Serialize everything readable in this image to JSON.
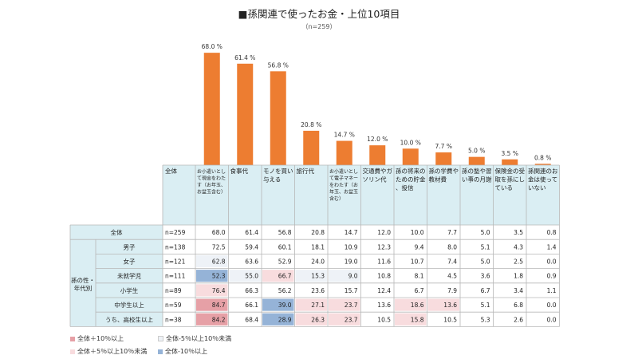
{
  "title": "■孫関連で使ったお金・上位10項目",
  "subtitle": "（n=259）",
  "colors": {
    "bar": "#ED7D31",
    "header_bg": "#DAEEF3",
    "grid": "#B7B7B7",
    "high10": "#E6A0A6",
    "high5": "#F8DCDE",
    "low10": "#95B3D7",
    "low5": "#EEF2F7"
  },
  "chart_data": {
    "type": "bar",
    "categories": [
      "お小遣いとして現金をわたす（お年玉、お盆玉含む）",
      "食事代",
      "モノを買い与える",
      "旅行代",
      "お小遣いとして電子マネーをわたす（お年玉、お盆玉含む）",
      "交通費やガソリン代",
      "孫の将来のための貯金、投信",
      "孫の学費や教材費",
      "孫の塾や習い事の月謝",
      "保険金の受取を孫にしている",
      "孫関連のお金は使っていない"
    ],
    "values": [
      68.0,
      61.4,
      56.8,
      20.8,
      14.7,
      12.0,
      10.0,
      7.7,
      5.0,
      3.5,
      0.8
    ],
    "value_labels": [
      "68.0 %",
      "61.4 %",
      "56.8 %",
      "20.8 %",
      "14.7 %",
      "12.0 %",
      "10.0 %",
      "7.7 %",
      "5.0 %",
      "3.5 %",
      "0.8 %"
    ],
    "ylim": [
      0,
      70
    ],
    "grid": false
  },
  "table": {
    "header_label": "全体",
    "column_headers": [
      "お小遣いとして現金をわたす（お年玉、お盆玉含む）",
      "食事代",
      "モノを買い与える",
      "旅行代",
      "お小遣いとして電子マネーをわたす（お年玉、お盆玉含む）",
      "交通費やガソリン代",
      "孫の将来のための貯金、投信",
      "孫の学費や教材費",
      "孫の塾や習い事の月謝",
      "保険金の受取を孫にしている",
      "孫関連のお金は使っていない"
    ],
    "group_label": "孫の性・年代別",
    "total_row": {
      "label": "全体",
      "n": "n=259",
      "values": [
        "68.0",
        "61.4",
        "56.8",
        "20.8",
        "14.7",
        "12.0",
        "10.0",
        "7.7",
        "5.0",
        "3.5",
        "0.8"
      ],
      "shade": [
        "",
        "",
        "",
        "",
        "",
        "",
        "",
        "",
        "",
        "",
        ""
      ]
    },
    "rows": [
      {
        "label": "男子",
        "n": "n=138",
        "values": [
          "72.5",
          "59.4",
          "60.1",
          "18.1",
          "10.9",
          "12.3",
          "9.4",
          "8.0",
          "5.1",
          "4.3",
          "1.4"
        ],
        "shade": [
          "",
          "",
          "",
          "",
          "",
          "",
          "",
          "",
          "",
          "",
          ""
        ]
      },
      {
        "label": "女子",
        "n": "n=121",
        "values": [
          "62.8",
          "63.6",
          "52.9",
          "24.0",
          "19.0",
          "11.6",
          "10.7",
          "7.4",
          "5.0",
          "2.5",
          "0.0"
        ],
        "shade": [
          "low5",
          "",
          "",
          "",
          "",
          "",
          "",
          "",
          "",
          "",
          ""
        ]
      },
      {
        "label": "未就学児",
        "n": "n=111",
        "values": [
          "52.3",
          "55.0",
          "66.7",
          "15.3",
          "9.0",
          "10.8",
          "8.1",
          "4.5",
          "3.6",
          "1.8",
          "0.9"
        ],
        "shade": [
          "low10",
          "low5",
          "high5",
          "low5",
          "low5",
          "",
          "",
          "",
          "",
          "",
          ""
        ]
      },
      {
        "label": "小学生",
        "n": "n=89",
        "values": [
          "76.4",
          "66.3",
          "56.2",
          "23.6",
          "15.7",
          "12.4",
          "6.7",
          "7.9",
          "6.7",
          "3.4",
          "1.1"
        ],
        "shade": [
          "high5",
          "",
          "",
          "",
          "",
          "",
          "",
          "",
          "",
          "",
          ""
        ]
      },
      {
        "label": "中学生以上",
        "n": "n=59",
        "values": [
          "84.7",
          "66.1",
          "39.0",
          "27.1",
          "23.7",
          "13.6",
          "18.6",
          "13.6",
          "5.1",
          "6.8",
          "0.0"
        ],
        "shade": [
          "high10",
          "",
          "low10",
          "high5",
          "high5",
          "",
          "high5",
          "high5",
          "",
          "",
          ""
        ]
      },
      {
        "label": "うち、高校生以上",
        "n": "n=38",
        "values": [
          "84.2",
          "68.4",
          "28.9",
          "26.3",
          "23.7",
          "10.5",
          "15.8",
          "10.5",
          "5.3",
          "2.6",
          "0.0"
        ],
        "shade": [
          "high10",
          "",
          "low10",
          "high5",
          "high5",
          "",
          "high5",
          "",
          "",
          "",
          ""
        ]
      }
    ]
  },
  "legend": [
    {
      "label": "全体＋10％以上",
      "color": "#E6A0A6"
    },
    {
      "label": "全体-5％以上10％未満",
      "color": "#EEF2F7"
    },
    {
      "label": "全体＋5％以上10％未満",
      "color": "#F8DCDE"
    },
    {
      "label": "全体-10％以上",
      "color": "#95B3D7"
    }
  ]
}
